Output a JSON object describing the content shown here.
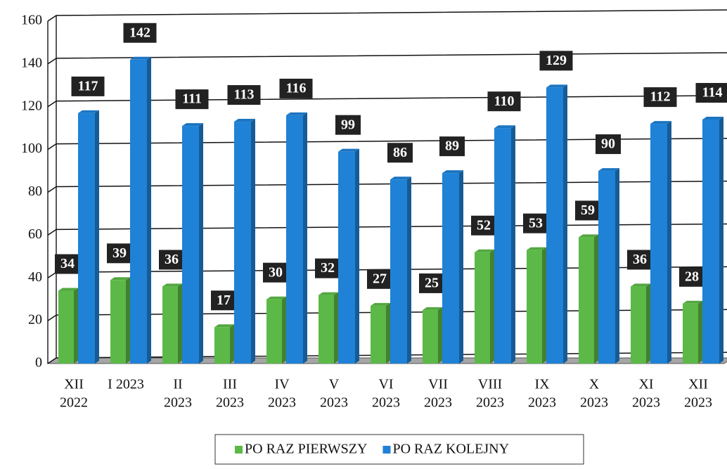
{
  "chart_data": {
    "type": "bar",
    "categories": [
      [
        "XII",
        "2022"
      ],
      [
        "I 2023"
      ],
      [
        "II",
        "2023"
      ],
      [
        "III",
        "2023"
      ],
      [
        "IV",
        "2023"
      ],
      [
        "V",
        "2023"
      ],
      [
        "VI",
        "2023"
      ],
      [
        "VII",
        "2023"
      ],
      [
        "VIII",
        "2023"
      ],
      [
        "IX",
        "2023"
      ],
      [
        "X",
        "2023"
      ],
      [
        "XI",
        "2023"
      ],
      [
        "XII",
        "2023"
      ]
    ],
    "series": [
      {
        "name": "PO RAZ PIERWSZY",
        "color": "#5cb947",
        "values": [
          34,
          39,
          36,
          17,
          30,
          32,
          27,
          25,
          52,
          53,
          59,
          36,
          28
        ]
      },
      {
        "name": "PO RAZ KOLEJNY",
        "color": "#1f82d6",
        "values": [
          117,
          142,
          111,
          113,
          116,
          99,
          86,
          89,
          110,
          129,
          90,
          112,
          114
        ]
      }
    ],
    "ylim": [
      0,
      160
    ],
    "yticks": [
      0,
      20,
      40,
      60,
      80,
      100,
      120,
      140,
      160
    ],
    "grid": true,
    "legend": "bottom"
  }
}
